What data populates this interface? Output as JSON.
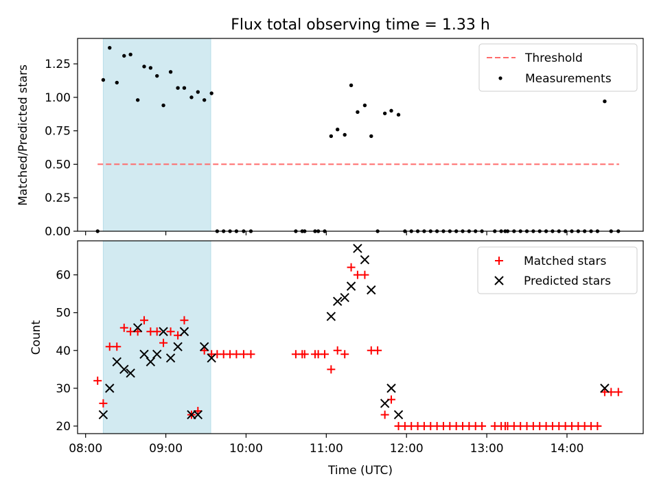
{
  "chart_data": [
    {
      "type": "scatter",
      "title": "Flux total observing time = 1.33 h",
      "ylabel": "Matched/Predicted stars",
      "xlabel": "",
      "x_unit": "hours UTC",
      "xlim": [
        7.9,
        14.95
      ],
      "ylim": [
        0,
        1.44
      ],
      "yticks": [
        0,
        0.25,
        0.5,
        0.75,
        1.0,
        1.25
      ],
      "ytick_labels": [
        "0.00",
        "0.25",
        "0.50",
        "0.75",
        "1.00",
        "1.25"
      ],
      "xticks": [
        8,
        9,
        10,
        11,
        12,
        13,
        14
      ],
      "xtick_labels": [
        "",
        "",
        "",
        "",
        "",
        "",
        ""
      ],
      "shaded_span": {
        "x0": 8.22,
        "x1": 9.56,
        "color": "#add8e6"
      },
      "threshold": {
        "name": "Threshold",
        "y": 0.5,
        "x0": 8.15,
        "x1": 14.65,
        "color": "#ff6b6b",
        "style": "dashed"
      },
      "legend": {
        "position": "top-right",
        "entries": [
          "Threshold",
          "Measurements"
        ]
      },
      "series": [
        {
          "name": "Measurements",
          "color": "#000000",
          "marker": "dot",
          "points": [
            [
              8.15,
              0.0
            ],
            [
              8.22,
              1.13
            ],
            [
              8.3,
              1.37
            ],
            [
              8.39,
              1.11
            ],
            [
              8.48,
              1.31
            ],
            [
              8.56,
              1.32
            ],
            [
              8.65,
              0.98
            ],
            [
              8.73,
              1.23
            ],
            [
              8.81,
              1.22
            ],
            [
              8.89,
              1.16
            ],
            [
              8.97,
              0.94
            ],
            [
              9.06,
              1.19
            ],
            [
              9.15,
              1.07
            ],
            [
              9.23,
              1.07
            ],
            [
              9.32,
              1.0
            ],
            [
              9.4,
              1.04
            ],
            [
              9.48,
              0.98
            ],
            [
              9.57,
              1.03
            ],
            [
              9.64,
              0.0
            ],
            [
              9.72,
              0.0
            ],
            [
              9.8,
              0.0
            ],
            [
              9.88,
              0.0
            ],
            [
              9.97,
              0.0
            ],
            [
              10.06,
              0.0
            ],
            [
              10.62,
              0.0
            ],
            [
              10.7,
              0.0
            ],
            [
              10.73,
              0.0
            ],
            [
              10.86,
              0.0
            ],
            [
              10.9,
              0.0
            ],
            [
              10.98,
              0.0
            ],
            [
              11.06,
              0.71
            ],
            [
              11.14,
              0.76
            ],
            [
              11.23,
              0.72
            ],
            [
              11.31,
              1.09
            ],
            [
              11.39,
              0.89
            ],
            [
              11.48,
              0.94
            ],
            [
              11.56,
              0.71
            ],
            [
              11.64,
              0.0
            ],
            [
              11.73,
              0.88
            ],
            [
              11.81,
              0.9
            ],
            [
              11.9,
              0.87
            ],
            [
              11.98,
              0.0
            ],
            [
              12.06,
              0.0
            ],
            [
              12.14,
              0.0
            ],
            [
              12.22,
              0.0
            ],
            [
              12.3,
              0.0
            ],
            [
              12.38,
              0.0
            ],
            [
              12.46,
              0.0
            ],
            [
              12.54,
              0.0
            ],
            [
              12.62,
              0.0
            ],
            [
              12.7,
              0.0
            ],
            [
              12.78,
              0.0
            ],
            [
              12.86,
              0.0
            ],
            [
              12.94,
              0.0
            ],
            [
              13.1,
              0.0
            ],
            [
              13.18,
              0.0
            ],
            [
              13.23,
              0.0
            ],
            [
              13.26,
              0.0
            ],
            [
              13.34,
              0.0
            ],
            [
              13.42,
              0.0
            ],
            [
              13.5,
              0.0
            ],
            [
              13.58,
              0.0
            ],
            [
              13.66,
              0.0
            ],
            [
              13.74,
              0.0
            ],
            [
              13.82,
              0.0
            ],
            [
              13.9,
              0.0
            ],
            [
              13.98,
              0.0
            ],
            [
              14.06,
              0.0
            ],
            [
              14.14,
              0.0
            ],
            [
              14.22,
              0.0
            ],
            [
              14.3,
              0.0
            ],
            [
              14.38,
              0.0
            ],
            [
              14.47,
              0.97
            ],
            [
              14.55,
              0.0
            ],
            [
              14.64,
              0.0
            ]
          ]
        }
      ]
    },
    {
      "type": "scatter",
      "title": "",
      "ylabel": "Count",
      "xlabel": "Time (UTC)",
      "x_unit": "hours UTC",
      "xlim": [
        7.9,
        14.95
      ],
      "ylim": [
        18,
        69
      ],
      "yticks": [
        20,
        30,
        40,
        50,
        60
      ],
      "ytick_labels": [
        "20",
        "30",
        "40",
        "50",
        "60"
      ],
      "xticks": [
        8,
        9,
        10,
        11,
        12,
        13,
        14
      ],
      "xtick_labels": [
        "08:00",
        "09:00",
        "10:00",
        "11:00",
        "12:00",
        "13:00",
        "14:00"
      ],
      "shaded_span": {
        "x0": 8.22,
        "x1": 9.56,
        "color": "#add8e6"
      },
      "legend": {
        "position": "top-right",
        "entries": [
          "Matched stars",
          "Predicted stars"
        ]
      },
      "series": [
        {
          "name": "Matched stars",
          "color": "#ff0000",
          "marker": "plus",
          "points": [
            [
              8.15,
              32
            ],
            [
              8.22,
              26
            ],
            [
              8.3,
              41
            ],
            [
              8.39,
              41
            ],
            [
              8.48,
              46
            ],
            [
              8.56,
              45
            ],
            [
              8.65,
              45
            ],
            [
              8.73,
              48
            ],
            [
              8.81,
              45
            ],
            [
              8.89,
              45
            ],
            [
              8.97,
              42
            ],
            [
              9.06,
              45
            ],
            [
              9.15,
              44
            ],
            [
              9.23,
              48
            ],
            [
              9.32,
              23
            ],
            [
              9.4,
              24
            ],
            [
              9.48,
              40
            ],
            [
              9.57,
              39
            ],
            [
              9.64,
              39
            ],
            [
              9.72,
              39
            ],
            [
              9.8,
              39
            ],
            [
              9.88,
              39
            ],
            [
              9.97,
              39
            ],
            [
              10.06,
              39
            ],
            [
              10.62,
              39
            ],
            [
              10.7,
              39
            ],
            [
              10.73,
              39
            ],
            [
              10.86,
              39
            ],
            [
              10.9,
              39
            ],
            [
              10.98,
              39
            ],
            [
              11.06,
              35
            ],
            [
              11.14,
              40
            ],
            [
              11.23,
              39
            ],
            [
              11.31,
              62
            ],
            [
              11.39,
              60
            ],
            [
              11.48,
              60
            ],
            [
              11.56,
              40
            ],
            [
              11.64,
              40
            ],
            [
              11.73,
              23
            ],
            [
              11.81,
              27
            ],
            [
              11.9,
              20
            ],
            [
              11.98,
              20
            ],
            [
              12.06,
              20
            ],
            [
              12.14,
              20
            ],
            [
              12.22,
              20
            ],
            [
              12.3,
              20
            ],
            [
              12.38,
              20
            ],
            [
              12.46,
              20
            ],
            [
              12.54,
              20
            ],
            [
              12.62,
              20
            ],
            [
              12.7,
              20
            ],
            [
              12.78,
              20
            ],
            [
              12.86,
              20
            ],
            [
              12.94,
              20
            ],
            [
              13.1,
              20
            ],
            [
              13.18,
              20
            ],
            [
              13.23,
              20
            ],
            [
              13.26,
              20
            ],
            [
              13.34,
              20
            ],
            [
              13.42,
              20
            ],
            [
              13.5,
              20
            ],
            [
              13.58,
              20
            ],
            [
              13.66,
              20
            ],
            [
              13.74,
              20
            ],
            [
              13.82,
              20
            ],
            [
              13.9,
              20
            ],
            [
              13.98,
              20
            ],
            [
              14.06,
              20
            ],
            [
              14.14,
              20
            ],
            [
              14.22,
              20
            ],
            [
              14.3,
              20
            ],
            [
              14.38,
              20
            ],
            [
              14.47,
              29
            ],
            [
              14.55,
              29
            ],
            [
              14.64,
              29
            ]
          ]
        },
        {
          "name": "Predicted stars",
          "color": "#000000",
          "marker": "cross",
          "points": [
            [
              8.22,
              23
            ],
            [
              8.3,
              30
            ],
            [
              8.39,
              37
            ],
            [
              8.48,
              35
            ],
            [
              8.56,
              34
            ],
            [
              8.65,
              46
            ],
            [
              8.73,
              39
            ],
            [
              8.81,
              37
            ],
            [
              8.89,
              39
            ],
            [
              8.97,
              45
            ],
            [
              9.06,
              38
            ],
            [
              9.15,
              41
            ],
            [
              9.23,
              45
            ],
            [
              9.32,
              23
            ],
            [
              9.4,
              23
            ],
            [
              9.48,
              41
            ],
            [
              9.57,
              38
            ],
            [
              11.06,
              49
            ],
            [
              11.14,
              53
            ],
            [
              11.23,
              54
            ],
            [
              11.31,
              57
            ],
            [
              11.39,
              67
            ],
            [
              11.48,
              64
            ],
            [
              11.56,
              56
            ],
            [
              11.73,
              26
            ],
            [
              11.81,
              30
            ],
            [
              11.9,
              23
            ],
            [
              14.47,
              30
            ]
          ]
        }
      ]
    }
  ]
}
